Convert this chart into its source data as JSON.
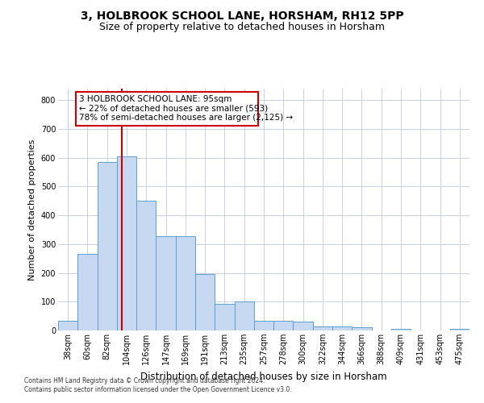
{
  "title": "3, HOLBROOK SCHOOL LANE, HORSHAM, RH12 5PP",
  "subtitle": "Size of property relative to detached houses in Horsham",
  "xlabel": "Distribution of detached houses by size in Horsham",
  "ylabel": "Number of detached properties",
  "footer_line1": "Contains HM Land Registry data © Crown copyright and database right 2024.",
  "footer_line2": "Contains public sector information licensed under the Open Government Licence v3.0.",
  "categories": [
    "38sqm",
    "60sqm",
    "82sqm",
    "104sqm",
    "126sqm",
    "147sqm",
    "169sqm",
    "191sqm",
    "213sqm",
    "235sqm",
    "257sqm",
    "278sqm",
    "300sqm",
    "322sqm",
    "344sqm",
    "366sqm",
    "388sqm",
    "409sqm",
    "431sqm",
    "453sqm",
    "475sqm"
  ],
  "values": [
    35,
    265,
    585,
    605,
    450,
    328,
    328,
    195,
    92,
    102,
    34,
    34,
    30,
    15,
    14,
    10,
    0,
    5,
    0,
    0,
    5
  ],
  "bar_color": "#c5d8f0",
  "bar_edge_color": "#5a9fd4",
  "ylim": [
    0,
    840
  ],
  "yticks": [
    0,
    100,
    200,
    300,
    400,
    500,
    600,
    700,
    800
  ],
  "property_line_x": 2.75,
  "annotation_text_line1": "3 HOLBROOK SCHOOL LANE: 95sqm",
  "annotation_text_line2": "← 22% of detached houses are smaller (593)",
  "annotation_text_line3": "78% of semi-detached houses are larger (2,125) →",
  "red_line_color": "#cc0000",
  "background_color": "#ffffff",
  "grid_color": "#c8d0e0",
  "title_fontsize": 10,
  "subtitle_fontsize": 9,
  "ylabel_fontsize": 8,
  "xlabel_fontsize": 8.5,
  "tick_fontsize": 7,
  "annot_fontsize": 7.5,
  "footer_fontsize": 5.5
}
